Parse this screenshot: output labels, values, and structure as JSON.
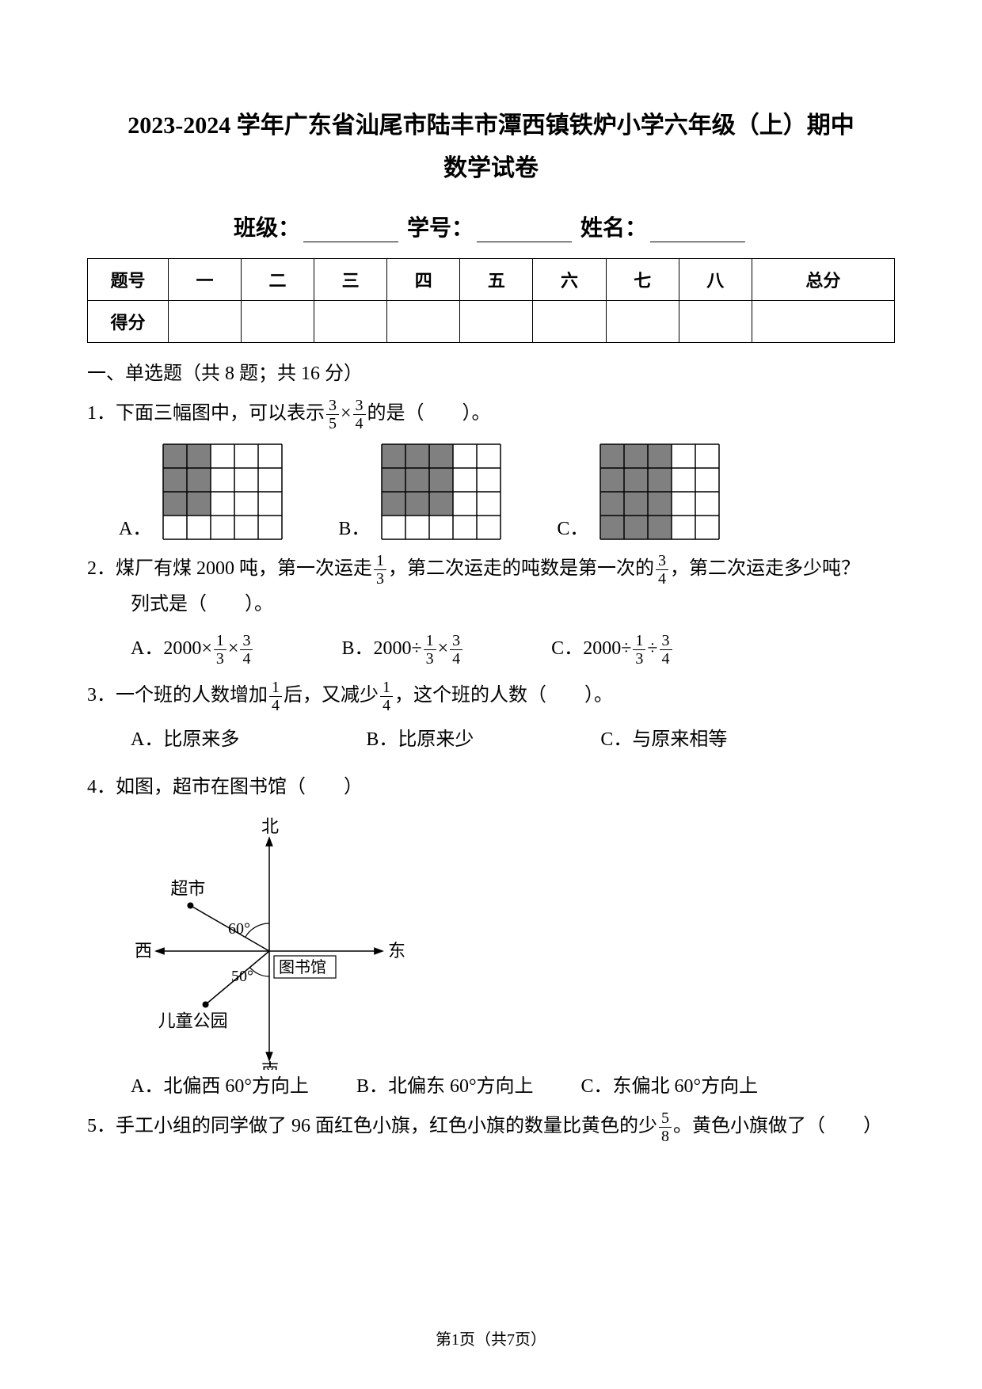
{
  "header": {
    "title_line1": "2023-2024 学年广东省汕尾市陆丰市潭西镇铁炉小学六年级（上）期中",
    "title_line2": "数学试卷"
  },
  "info": {
    "class_label": "班级：",
    "id_label": "学号：",
    "name_label": "姓名："
  },
  "score_table": {
    "row_label": "题号",
    "cols": [
      "一",
      "二",
      "三",
      "四",
      "五",
      "六",
      "七",
      "八",
      "总分"
    ],
    "score_label": "得分"
  },
  "section1": "一、单选题（共 8 题；共 16 分）",
  "q1": {
    "prefix": "1．下面三幅图中，可以表示",
    "frac1_top": "3",
    "frac1_bot": "5",
    "times": "×",
    "frac2_top": "3",
    "frac2_bot": "4",
    "suffix": "的是（　　）。",
    "grid": {
      "cols": 5,
      "rows": 4,
      "cell": 30,
      "stroke": "#000000",
      "fill": "#808080",
      "A_shaded": [
        [
          0,
          0
        ],
        [
          1,
          0
        ],
        [
          0,
          1
        ],
        [
          1,
          1
        ],
        [
          0,
          2
        ],
        [
          1,
          2
        ]
      ],
      "B_shaded": [
        [
          0,
          0
        ],
        [
          1,
          0
        ],
        [
          2,
          0
        ],
        [
          0,
          1
        ],
        [
          1,
          1
        ],
        [
          2,
          1
        ],
        [
          0,
          2
        ],
        [
          1,
          2
        ],
        [
          2,
          2
        ]
      ],
      "C_shaded": [
        [
          0,
          0
        ],
        [
          1,
          0
        ],
        [
          2,
          0
        ],
        [
          0,
          1
        ],
        [
          1,
          1
        ],
        [
          2,
          1
        ],
        [
          0,
          2
        ],
        [
          1,
          2
        ],
        [
          2,
          2
        ],
        [
          0,
          3
        ],
        [
          1,
          3
        ],
        [
          2,
          3
        ]
      ]
    },
    "labels": {
      "A": "A．",
      "B": "B．",
      "C": "C．"
    }
  },
  "q2": {
    "prefix": "2．煤厂有煤 2000 吨，第一次运走",
    "f1_top": "1",
    "f1_bot": "3",
    "mid1": "，第二次运走的吨数是第一次的",
    "f2_top": "3",
    "f2_bot": "4",
    "mid2": "，第二次运走多少吨？",
    "line2": "列式是（　　）。",
    "opts": {
      "A_pre": "A．",
      "A_num": "2000×",
      "A_f1t": "1",
      "A_f1b": "3",
      "A_x": "×",
      "A_f2t": "3",
      "A_f2b": "4",
      "B_pre": "B．",
      "B_num": "2000÷",
      "B_f1t": "1",
      "B_f1b": "3",
      "B_x": "×",
      "B_f2t": "3",
      "B_f2b": "4",
      "C_pre": "C．",
      "C_num": "2000÷",
      "C_f1t": "1",
      "C_f1b": "3",
      "C_x": "÷",
      "C_f2t": "3",
      "C_f2b": "4"
    }
  },
  "q3": {
    "prefix": "3．一个班的人数增加",
    "f1_top": "1",
    "f1_bot": "4",
    "mid1": "后，又减少",
    "f2_top": "1",
    "f2_bot": "4",
    "suffix": "，这个班的人数（　　）。",
    "opts": {
      "A": "A．比原来多",
      "B": "B．比原来少",
      "C": "C．与原来相等"
    }
  },
  "q4": {
    "text": "4．如图，超市在图书馆（　　）",
    "diagram": {
      "n": "北",
      "s": "南",
      "e": "东",
      "w": "西",
      "supermarket": "超市",
      "library": "图书馆",
      "park": "儿童公园",
      "angle1": "60°",
      "angle2": "50°",
      "colors": {
        "line": "#000000"
      }
    },
    "opts": {
      "A": "A．北偏西 60°方向上",
      "B": "B．北偏东 60°方向上",
      "C": "C．东偏北 60°方向上"
    }
  },
  "q5": {
    "prefix": "5．手工小组的同学做了 96 面红色小旗，红色小旗的数量比黄色的少",
    "f_top": "5",
    "f_bot": "8",
    "suffix": "。黄色小旗做了（　　）"
  },
  "footer": "第1页（共7页）"
}
